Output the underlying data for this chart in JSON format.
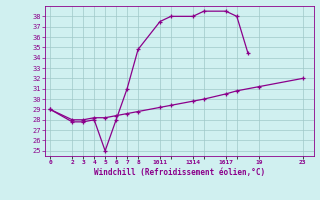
{
  "xlabel": "Windchill (Refroidissement éolien,°C)",
  "line1_x": [
    0,
    2,
    3,
    4,
    5,
    6,
    7,
    8,
    10,
    11,
    13,
    14,
    16,
    17,
    18
  ],
  "line1_y": [
    29,
    27.8,
    27.8,
    28,
    25,
    28,
    31,
    34.8,
    37.5,
    38,
    38,
    38.5,
    38.5,
    38,
    34.5
  ],
  "line2_x": [
    0,
    2,
    3,
    4,
    5,
    6,
    7,
    8,
    10,
    11,
    13,
    14,
    16,
    17,
    19,
    23
  ],
  "line2_y": [
    29,
    28,
    28,
    28.2,
    28.2,
    28.4,
    28.6,
    28.8,
    29.2,
    29.4,
    29.8,
    30.0,
    30.5,
    30.8,
    31.2,
    32
  ],
  "line_color": "#8b008b",
  "bg_color": "#d0f0f0",
  "grid_color": "#a0c8c8",
  "ylim": [
    24.5,
    39.0
  ],
  "xlim": [
    -0.5,
    24
  ],
  "yticks": [
    25,
    26,
    27,
    28,
    29,
    30,
    31,
    32,
    33,
    34,
    35,
    36,
    37,
    38
  ],
  "xtick_positions": [
    0,
    2,
    3,
    4,
    5,
    6,
    7,
    8,
    10,
    11,
    13,
    14,
    16,
    17,
    19,
    23
  ],
  "xtick_labels": [
    "0",
    "2",
    "3",
    "4",
    "5",
    "6",
    "7",
    "8",
    "1011",
    "",
    "1314",
    "",
    "1617",
    "",
    "19",
    "23"
  ]
}
